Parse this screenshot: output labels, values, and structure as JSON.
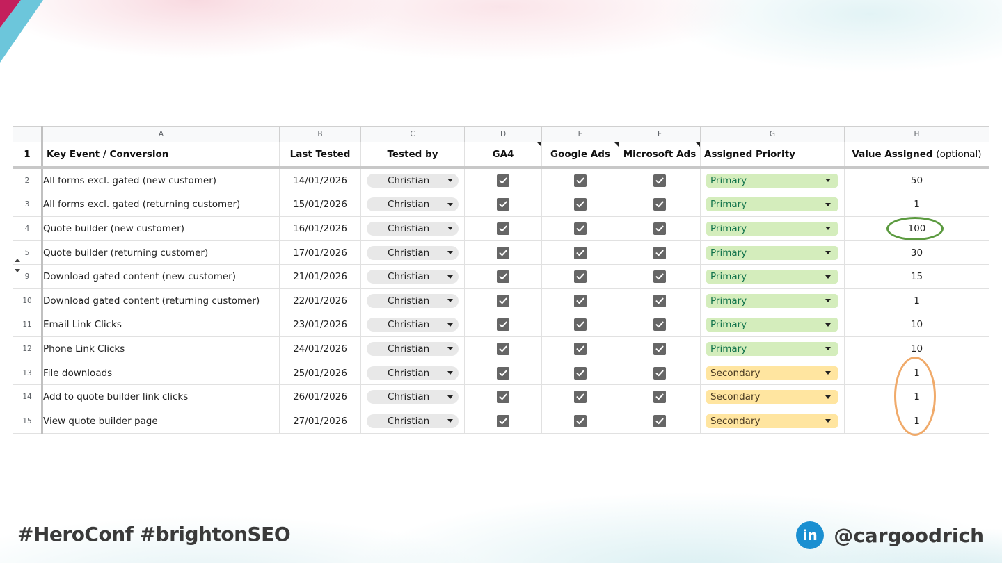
{
  "slide": {
    "hashtags": "#HeroConf #brightonSEO",
    "linkedin_icon_text": "in",
    "handle": "@cargoodrich"
  },
  "sheet": {
    "column_letters": [
      "A",
      "B",
      "C",
      "D",
      "E",
      "F",
      "G",
      "H"
    ],
    "headers": {
      "a": "Key Event / Conversion",
      "b": "Last Tested",
      "c": "Tested by",
      "d": "GA4",
      "e": "Google Ads",
      "f": "Microsoft Ads",
      "g": "Assigned Priority",
      "h_main": "Value Assigned",
      "h_note": "(optional)"
    },
    "header_row_number": "1",
    "rows": [
      {
        "num": "2",
        "event": "All forms excl. gated (new customer)",
        "date": "14/01/2026",
        "tester": "Christian",
        "ga4": true,
        "gads": true,
        "msads": true,
        "priority": "Primary",
        "value": "50"
      },
      {
        "num": "3",
        "event": "All forms excl. gated (returning customer)",
        "date": "15/01/2026",
        "tester": "Christian",
        "ga4": true,
        "gads": true,
        "msads": true,
        "priority": "Primary",
        "value": "1"
      },
      {
        "num": "4",
        "event": "Quote builder (new customer)",
        "date": "16/01/2026",
        "tester": "Christian",
        "ga4": true,
        "gads": true,
        "msads": true,
        "priority": "Primary",
        "value": "100"
      },
      {
        "num": "5",
        "event": "Quote builder (returning customer)",
        "date": "17/01/2026",
        "tester": "Christian",
        "ga4": true,
        "gads": true,
        "msads": true,
        "priority": "Primary",
        "value": "30"
      },
      {
        "num": "9",
        "event": "Download gated content (new customer)",
        "date": "21/01/2026",
        "tester": "Christian",
        "ga4": true,
        "gads": true,
        "msads": true,
        "priority": "Primary",
        "value": "15"
      },
      {
        "num": "10",
        "event": "Download gated content (returning customer)",
        "date": "22/01/2026",
        "tester": "Christian",
        "ga4": true,
        "gads": true,
        "msads": true,
        "priority": "Primary",
        "value": "1"
      },
      {
        "num": "11",
        "event": "Email Link Clicks",
        "date": "23/01/2026",
        "tester": "Christian",
        "ga4": true,
        "gads": true,
        "msads": true,
        "priority": "Primary",
        "value": "10"
      },
      {
        "num": "12",
        "event": "Phone Link Clicks",
        "date": "24/01/2026",
        "tester": "Christian",
        "ga4": true,
        "gads": true,
        "msads": true,
        "priority": "Primary",
        "value": "10"
      },
      {
        "num": "13",
        "event": "File downloads",
        "date": "25/01/2026",
        "tester": "Christian",
        "ga4": true,
        "gads": true,
        "msads": true,
        "priority": "Secondary",
        "value": "1"
      },
      {
        "num": "14",
        "event": "Add to quote builder link clicks",
        "date": "26/01/2026",
        "tester": "Christian",
        "ga4": true,
        "gads": true,
        "msads": true,
        "priority": "Secondary",
        "value": "1"
      },
      {
        "num": "15",
        "event": "View quote builder page",
        "date": "27/01/2026",
        "tester": "Christian",
        "ga4": true,
        "gads": true,
        "msads": true,
        "priority": "Secondary",
        "value": "1"
      }
    ]
  },
  "colors": {
    "primary_bg": "#d4edbc",
    "primary_text": "#11734b",
    "secondary_bg": "#ffe5a0",
    "secondary_text": "#473821",
    "green_ring": "#5b9a3f",
    "orange_ring": "#f0aa6a",
    "linkedin": "#1a8fd1"
  }
}
